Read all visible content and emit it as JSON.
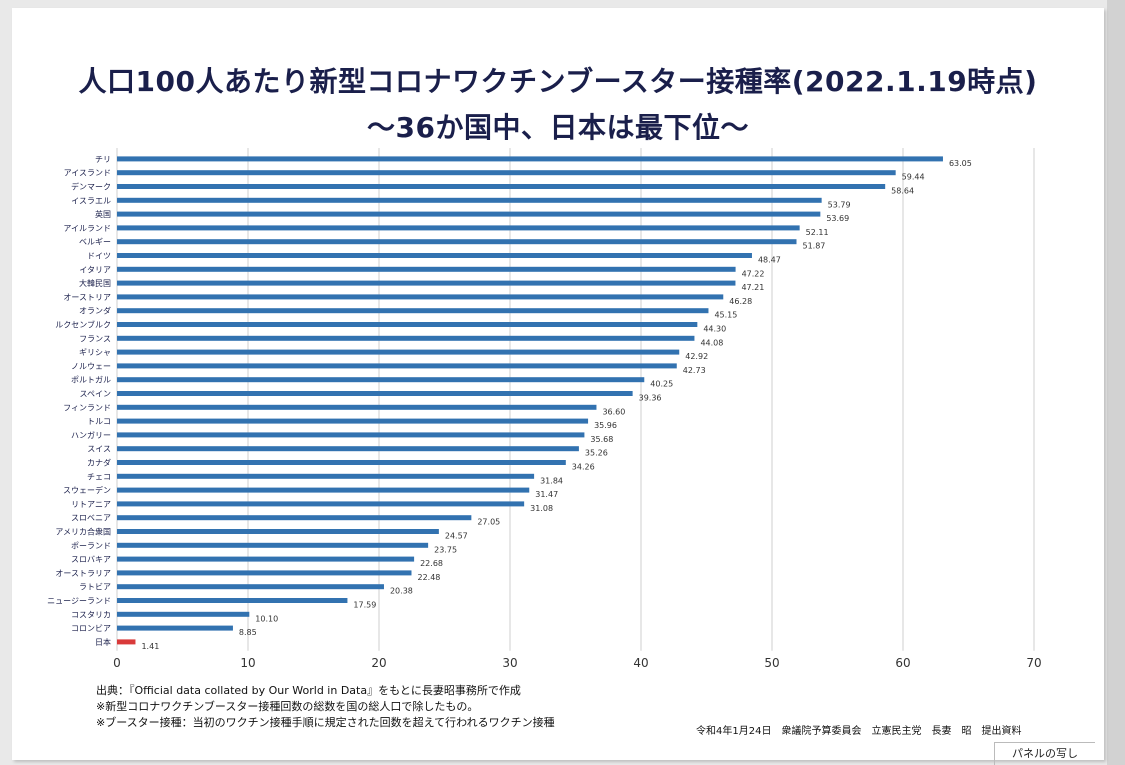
{
  "title_line1": "人口100人あたり新型コロナワクチンブースター接種率(2022.1.19時点)",
  "title_line2": "～36か国中、日本は最下位～",
  "chart_data": {
    "type": "bar",
    "orientation": "horizontal",
    "categories": [
      "チリ",
      "アイスランド",
      "デンマーク",
      "イスラエル",
      "英国",
      "アイルランド",
      "ベルギー",
      "ドイツ",
      "イタリア",
      "大韓民国",
      "オーストリア",
      "オランダ",
      "ルクセンブルク",
      "フランス",
      "ギリシャ",
      "ノルウェー",
      "ポルトガル",
      "スペイン",
      "フィンランド",
      "トルコ",
      "ハンガリー",
      "スイス",
      "カナダ",
      "チェコ",
      "スウェーデン",
      "リトアニア",
      "スロベニア",
      "アメリカ合衆国",
      "ポーランド",
      "スロバキア",
      "オーストラリア",
      "ラトビア",
      "ニュージーランド",
      "コスタリカ",
      "コロンビア",
      "日本"
    ],
    "values": [
      63.05,
      59.44,
      58.64,
      53.79,
      53.69,
      52.11,
      51.87,
      48.47,
      47.22,
      47.21,
      46.28,
      45.15,
      44.3,
      44.08,
      42.92,
      42.73,
      40.25,
      39.36,
      36.6,
      35.96,
      35.68,
      35.26,
      34.26,
      31.84,
      31.47,
      31.08,
      27.05,
      24.57,
      23.75,
      22.68,
      22.48,
      20.38,
      17.59,
      10.1,
      8.85,
      1.41
    ],
    "value_labels": [
      "63.05",
      "59.44",
      "58.64",
      "53.79",
      "53.69",
      "52.11",
      "51.87",
      "48.47",
      "47.22",
      "47.21",
      "46.28",
      "45.15",
      "44.30",
      "44.08",
      "42.92",
      "42.73",
      "40.25",
      "39.36",
      "36.60",
      "35.96",
      "35.68",
      "35.26",
      "34.26",
      "31.84",
      "31.47",
      "31.08",
      "27.05",
      "24.57",
      "23.75",
      "22.68",
      "22.48",
      "20.38",
      "17.59",
      "10.10",
      "8.85",
      "1.41"
    ],
    "x_ticks": [
      "0",
      "10",
      "20",
      "30",
      "40",
      "50",
      "60",
      "70"
    ],
    "xlim": [
      0,
      70
    ],
    "grid": "vertical",
    "colors": {
      "bar": "#3272b0",
      "highlight": "#d93a3a",
      "grid": "#cfcfcf"
    },
    "highlight_category": "日本"
  },
  "notes": [
    "出典：『Official data collated by Our World in Data』をもとに長妻昭事務所で作成",
    "※新型コロナワクチンブースター接種回数の総数を国の総人口で除したもの。",
    "※ブースター接種：当初のワクチン接種手順に規定された回数を超えて行われるワクチン接種"
  ],
  "footer": "令和4年1月24日　衆議院予算委員会　立憲民主党　長妻　昭　提出資料",
  "panel_copy": "パネルの写し"
}
